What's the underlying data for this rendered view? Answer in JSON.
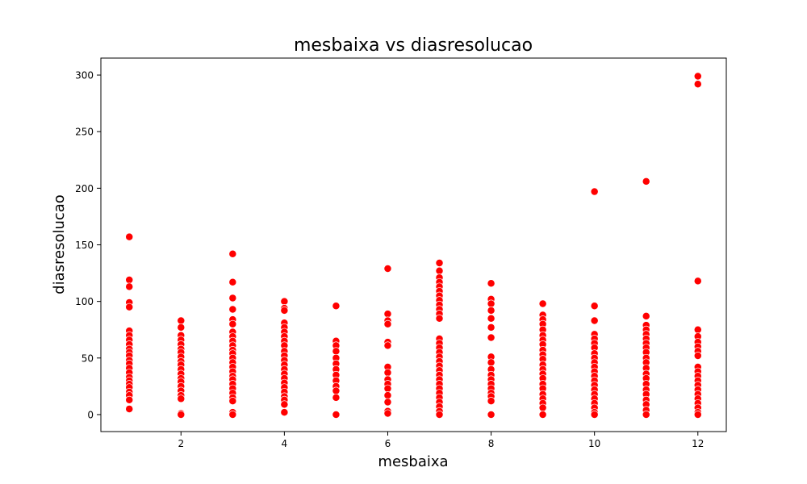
{
  "chart_data": {
    "type": "scatter",
    "title": "mesbaixa vs diasresolucao",
    "xlabel": "mesbaixa",
    "ylabel": "diasresolucao",
    "xlim": [
      0.45,
      12.55
    ],
    "ylim": [
      -15,
      315
    ],
    "xticks": [
      2,
      4,
      6,
      8,
      10,
      12
    ],
    "yticks": [
      0,
      50,
      100,
      150,
      200,
      250,
      300
    ],
    "grid": false,
    "marker_color": "#ff0000",
    "marker_edge_color": "#ffffff",
    "series": [
      {
        "points": [
          [
            1,
            157
          ],
          [
            1,
            119
          ],
          [
            1,
            113
          ],
          [
            1,
            99
          ],
          [
            1,
            95
          ],
          [
            1,
            74
          ],
          [
            1,
            70
          ],
          [
            1,
            66
          ],
          [
            1,
            62
          ],
          [
            1,
            58
          ],
          [
            1,
            55
          ],
          [
            1,
            52
          ],
          [
            1,
            48
          ],
          [
            1,
            45
          ],
          [
            1,
            41
          ],
          [
            1,
            37
          ],
          [
            1,
            33
          ],
          [
            1,
            30
          ],
          [
            1,
            27
          ],
          [
            1,
            24
          ],
          [
            1,
            20
          ],
          [
            1,
            17
          ],
          [
            1,
            13
          ],
          [
            1,
            5
          ],
          [
            2,
            83
          ],
          [
            2,
            77
          ],
          [
            2,
            70
          ],
          [
            2,
            66
          ],
          [
            2,
            62
          ],
          [
            2,
            58
          ],
          [
            2,
            55
          ],
          [
            2,
            51
          ],
          [
            2,
            47
          ],
          [
            2,
            44
          ],
          [
            2,
            40
          ],
          [
            2,
            36
          ],
          [
            2,
            32
          ],
          [
            2,
            29
          ],
          [
            2,
            25
          ],
          [
            2,
            21
          ],
          [
            2,
            17
          ],
          [
            2,
            14
          ],
          [
            2,
            1
          ],
          [
            2,
            0
          ],
          [
            3,
            142
          ],
          [
            3,
            117
          ],
          [
            3,
            103
          ],
          [
            3,
            93
          ],
          [
            3,
            84
          ],
          [
            3,
            80
          ],
          [
            3,
            73
          ],
          [
            3,
            69
          ],
          [
            3,
            65
          ],
          [
            3,
            61
          ],
          [
            3,
            57
          ],
          [
            3,
            54
          ],
          [
            3,
            50
          ],
          [
            3,
            46
          ],
          [
            3,
            42
          ],
          [
            3,
            38
          ],
          [
            3,
            34
          ],
          [
            3,
            31
          ],
          [
            3,
            27
          ],
          [
            3,
            23
          ],
          [
            3,
            19
          ],
          [
            3,
            15
          ],
          [
            3,
            12
          ],
          [
            3,
            2
          ],
          [
            3,
            0
          ],
          [
            4,
            100
          ],
          [
            4,
            94
          ],
          [
            4,
            92
          ],
          [
            4,
            81
          ],
          [
            4,
            77
          ],
          [
            4,
            73
          ],
          [
            4,
            69
          ],
          [
            4,
            65
          ],
          [
            4,
            61
          ],
          [
            4,
            56
          ],
          [
            4,
            52
          ],
          [
            4,
            48
          ],
          [
            4,
            44
          ],
          [
            4,
            40
          ],
          [
            4,
            36
          ],
          [
            4,
            32
          ],
          [
            4,
            28
          ],
          [
            4,
            24
          ],
          [
            4,
            20
          ],
          [
            4,
            16
          ],
          [
            4,
            13
          ],
          [
            4,
            9
          ],
          [
            4,
            2
          ],
          [
            5,
            96
          ],
          [
            5,
            65
          ],
          [
            5,
            61
          ],
          [
            5,
            56
          ],
          [
            5,
            50
          ],
          [
            5,
            45
          ],
          [
            5,
            40
          ],
          [
            5,
            35
          ],
          [
            5,
            30
          ],
          [
            5,
            25
          ],
          [
            5,
            21
          ],
          [
            5,
            15
          ],
          [
            5,
            0
          ],
          [
            6,
            129
          ],
          [
            6,
            89
          ],
          [
            6,
            83
          ],
          [
            6,
            80
          ],
          [
            6,
            64
          ],
          [
            6,
            61
          ],
          [
            6,
            42
          ],
          [
            6,
            37
          ],
          [
            6,
            31
          ],
          [
            6,
            27
          ],
          [
            6,
            23
          ],
          [
            6,
            17
          ],
          [
            6,
            11
          ],
          [
            6,
            3
          ],
          [
            6,
            1
          ],
          [
            7,
            134
          ],
          [
            7,
            127
          ],
          [
            7,
            121
          ],
          [
            7,
            117
          ],
          [
            7,
            113
          ],
          [
            7,
            109
          ],
          [
            7,
            105
          ],
          [
            7,
            101
          ],
          [
            7,
            97
          ],
          [
            7,
            93
          ],
          [
            7,
            89
          ],
          [
            7,
            85
          ],
          [
            7,
            67
          ],
          [
            7,
            63
          ],
          [
            7,
            59
          ],
          [
            7,
            55
          ],
          [
            7,
            51
          ],
          [
            7,
            47
          ],
          [
            7,
            43
          ],
          [
            7,
            39
          ],
          [
            7,
            35
          ],
          [
            7,
            31
          ],
          [
            7,
            27
          ],
          [
            7,
            23
          ],
          [
            7,
            19
          ],
          [
            7,
            15
          ],
          [
            7,
            11
          ],
          [
            7,
            7
          ],
          [
            7,
            3
          ],
          [
            7,
            0
          ],
          [
            8,
            116
          ],
          [
            8,
            102
          ],
          [
            8,
            98
          ],
          [
            8,
            92
          ],
          [
            8,
            85
          ],
          [
            8,
            77
          ],
          [
            8,
            68
          ],
          [
            8,
            51
          ],
          [
            8,
            46
          ],
          [
            8,
            40
          ],
          [
            8,
            35
          ],
          [
            8,
            31
          ],
          [
            8,
            27
          ],
          [
            8,
            23
          ],
          [
            8,
            19
          ],
          [
            8,
            16
          ],
          [
            8,
            12
          ],
          [
            8,
            0
          ],
          [
            9,
            98
          ],
          [
            9,
            88
          ],
          [
            9,
            84
          ],
          [
            9,
            80
          ],
          [
            9,
            75
          ],
          [
            9,
            70
          ],
          [
            9,
            66
          ],
          [
            9,
            62
          ],
          [
            9,
            57
          ],
          [
            9,
            53
          ],
          [
            9,
            49
          ],
          [
            9,
            44
          ],
          [
            9,
            40
          ],
          [
            9,
            36
          ],
          [
            9,
            32
          ],
          [
            9,
            27
          ],
          [
            9,
            23
          ],
          [
            9,
            18
          ],
          [
            9,
            14
          ],
          [
            9,
            10
          ],
          [
            9,
            6
          ],
          [
            9,
            0
          ],
          [
            10,
            197
          ],
          [
            10,
            96
          ],
          [
            10,
            83
          ],
          [
            10,
            71
          ],
          [
            10,
            67
          ],
          [
            10,
            63
          ],
          [
            10,
            59
          ],
          [
            10,
            54
          ],
          [
            10,
            50
          ],
          [
            10,
            46
          ],
          [
            10,
            42
          ],
          [
            10,
            38
          ],
          [
            10,
            34
          ],
          [
            10,
            30
          ],
          [
            10,
            26
          ],
          [
            10,
            22
          ],
          [
            10,
            18
          ],
          [
            10,
            14
          ],
          [
            10,
            10
          ],
          [
            10,
            6
          ],
          [
            10,
            2
          ],
          [
            10,
            0
          ],
          [
            11,
            206
          ],
          [
            11,
            87
          ],
          [
            11,
            79
          ],
          [
            11,
            75
          ],
          [
            11,
            71
          ],
          [
            11,
            67
          ],
          [
            11,
            63
          ],
          [
            11,
            59
          ],
          [
            11,
            55
          ],
          [
            11,
            50
          ],
          [
            11,
            46
          ],
          [
            11,
            41
          ],
          [
            11,
            36
          ],
          [
            11,
            32
          ],
          [
            11,
            27
          ],
          [
            11,
            22
          ],
          [
            11,
            18
          ],
          [
            11,
            13
          ],
          [
            11,
            9
          ],
          [
            11,
            4
          ],
          [
            11,
            0
          ],
          [
            12,
            299
          ],
          [
            12,
            292
          ],
          [
            12,
            118
          ],
          [
            12,
            75
          ],
          [
            12,
            69
          ],
          [
            12,
            64
          ],
          [
            12,
            60
          ],
          [
            12,
            56
          ],
          [
            12,
            52
          ],
          [
            12,
            42
          ],
          [
            12,
            38
          ],
          [
            12,
            34
          ],
          [
            12,
            30
          ],
          [
            12,
            26
          ],
          [
            12,
            22
          ],
          [
            12,
            18
          ],
          [
            12,
            14
          ],
          [
            12,
            10
          ],
          [
            12,
            6
          ],
          [
            12,
            2
          ],
          [
            12,
            0
          ]
        ]
      }
    ]
  }
}
